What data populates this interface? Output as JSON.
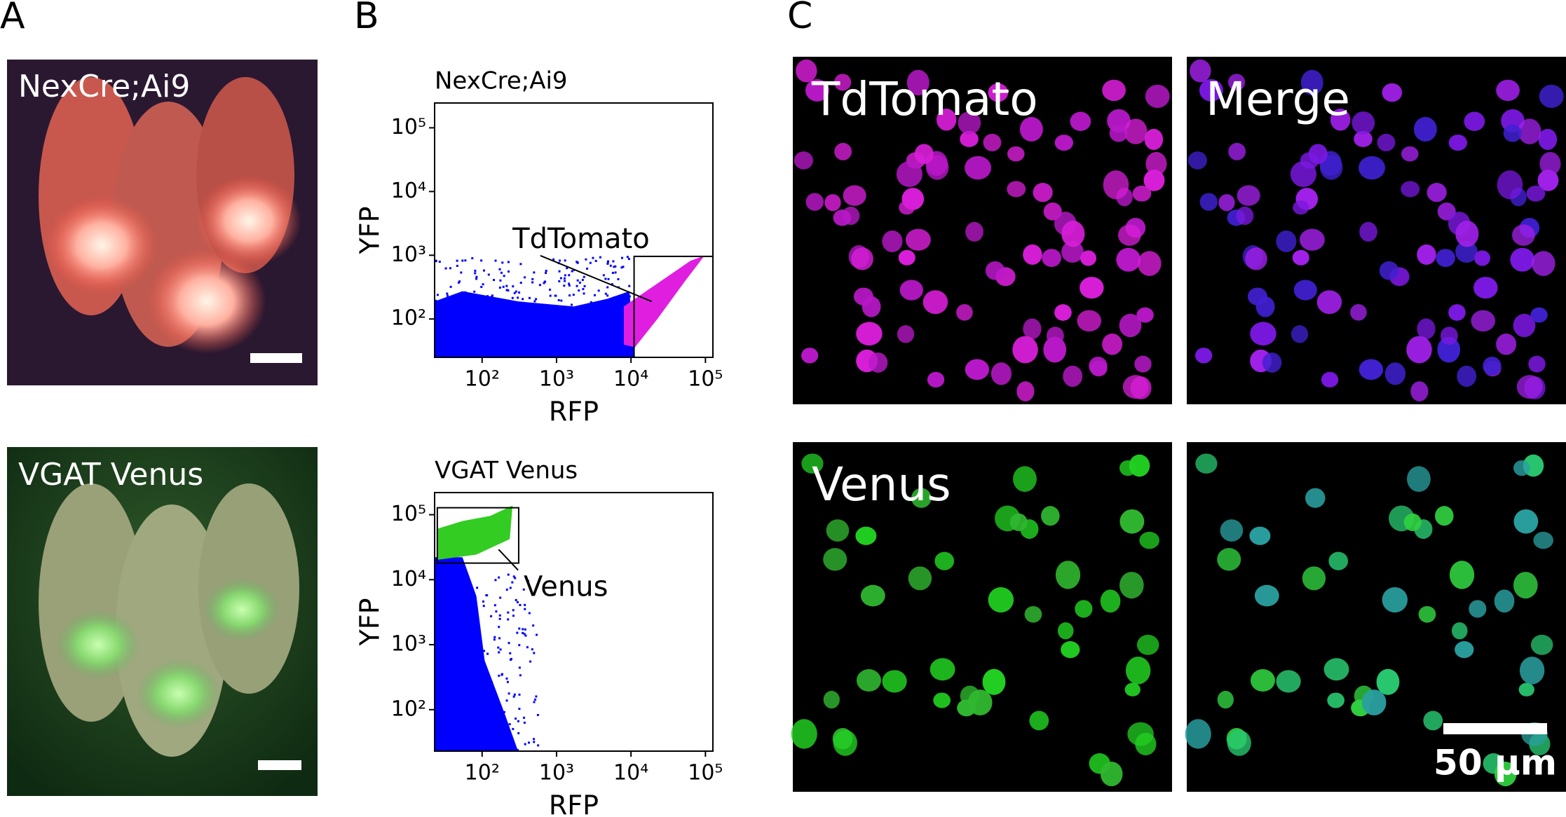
{
  "panels": {
    "a": {
      "letter": "A",
      "images": [
        {
          "label": "NexCre;Ai9"
        },
        {
          "label": "VGAT Venus"
        }
      ]
    },
    "b": {
      "letter": "B"
    },
    "c": {
      "letter": "C",
      "images": [
        {
          "label": "TdTomato"
        },
        {
          "label": "Merge"
        },
        {
          "label": "Venus"
        }
      ],
      "scale_bar": "50 μm"
    }
  },
  "chart_data": [
    {
      "type": "scatter",
      "title": "NexCre;Ai9",
      "x_label": "RFP",
      "y_label": "YFP",
      "xscale": "log",
      "yscale": "log",
      "xlim": [
        23,
        126000
      ],
      "ylim": [
        25,
        245000
      ],
      "xticks": [
        {
          "value": 100,
          "label": "10²"
        },
        {
          "value": 1000,
          "label": "10³"
        },
        {
          "value": 10000,
          "label": "10⁴"
        },
        {
          "value": 100000,
          "label": "10⁵"
        }
      ],
      "yticks": [
        {
          "value": 100,
          "label": "10²"
        },
        {
          "value": 1000,
          "label": "10³"
        },
        {
          "value": 10000,
          "label": "10⁴"
        },
        {
          "value": 100000,
          "label": "10⁵"
        }
      ],
      "color": "#0000ff",
      "gate": {
        "label": "TdTomato",
        "xlim": [
          11000,
          126000
        ],
        "ylim": [
          25,
          960
        ],
        "color": "#e01ee0"
      }
    },
    {
      "type": "scatter",
      "title": "VGAT Venus",
      "x_label": "RFP",
      "y_label": "YFP",
      "xscale": "log",
      "yscale": "log",
      "xlim": [
        23,
        126000
      ],
      "ylim": [
        23,
        219000
      ],
      "xticks": [
        {
          "value": 100,
          "label": "10²"
        },
        {
          "value": 1000,
          "label": "10³"
        },
        {
          "value": 10000,
          "label": "10⁴"
        },
        {
          "value": 100000,
          "label": "10⁵"
        }
      ],
      "yticks": [
        {
          "value": 100,
          "label": "10²"
        },
        {
          "value": 1000,
          "label": "10³"
        },
        {
          "value": 10000,
          "label": "10⁴"
        },
        {
          "value": 100000,
          "label": "10⁵"
        }
      ],
      "color": "#0000ff",
      "gate": {
        "label": "Venus",
        "xlim": [
          25,
          310
        ],
        "ylim": [
          18000,
          128000
        ],
        "color": "#33cc22"
      }
    }
  ]
}
